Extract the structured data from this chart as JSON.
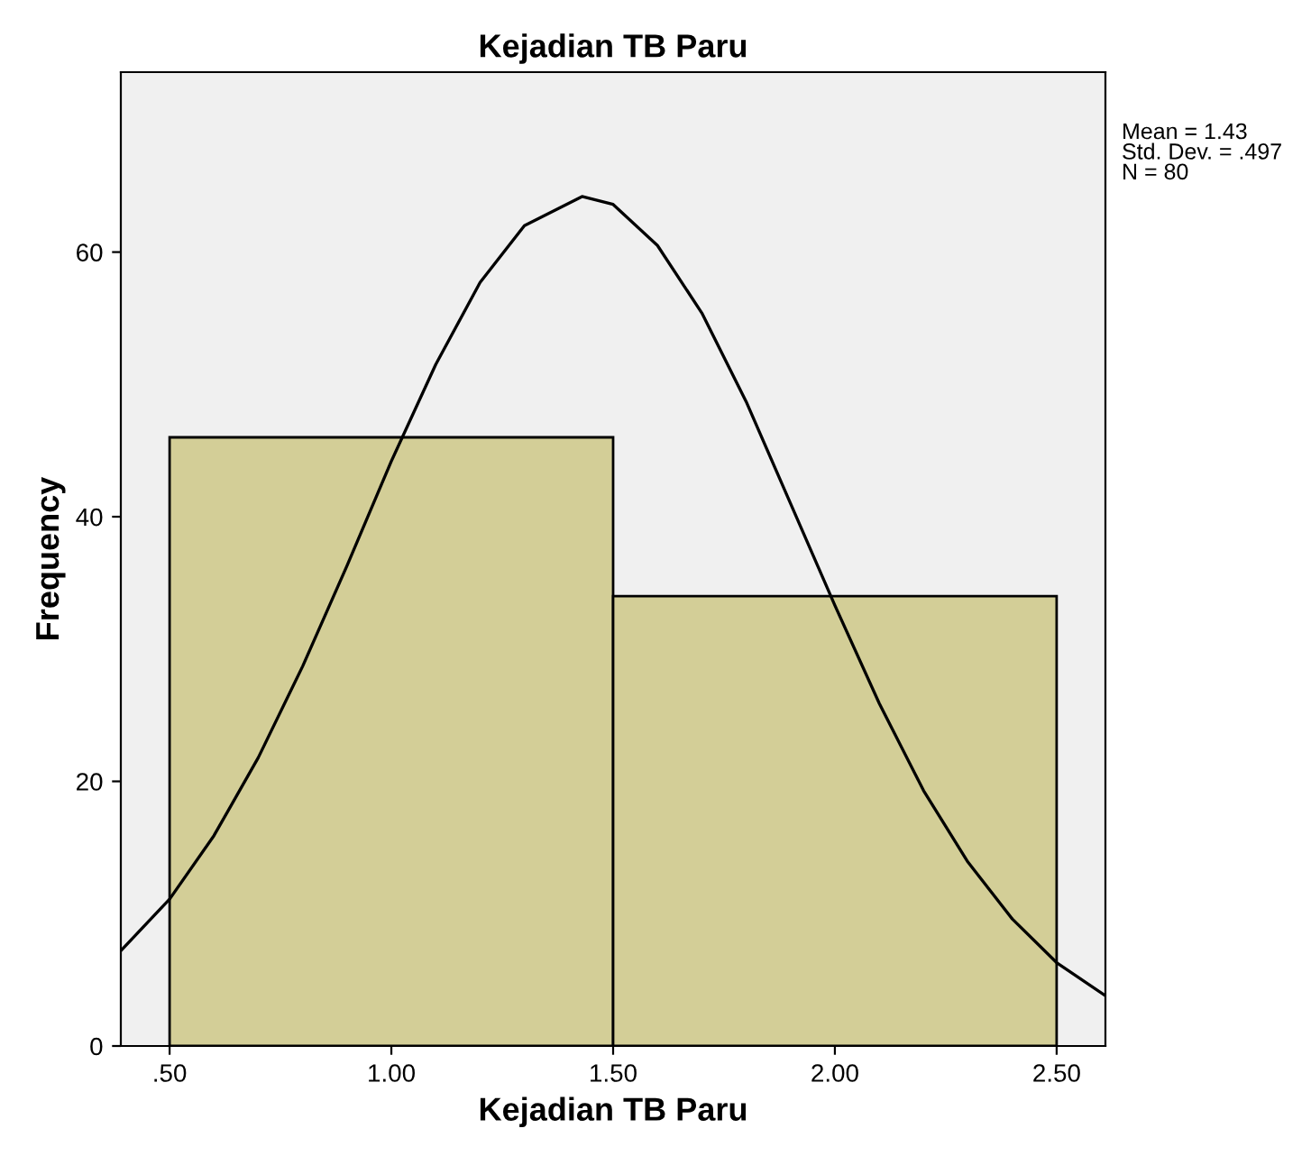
{
  "chart_data": {
    "type": "histogram",
    "title": "Kejadian TB Paru",
    "xlabel": "Kejadian TB Paru",
    "ylabel": "Frequency",
    "bins": [
      0.5,
      1.5,
      2.5
    ],
    "series": [
      {
        "color": "#d3ce97",
        "values": [
          46,
          34
        ]
      },
      {
        "type": "line",
        "color": "#000000",
        "x": [
          0.39,
          0.5,
          0.6,
          0.7,
          0.8,
          0.9,
          1.0,
          1.1,
          1.2,
          1.3,
          1.43,
          1.5,
          1.6,
          1.7,
          1.8,
          1.9,
          2.0,
          2.1,
          2.2,
          2.3,
          2.4,
          2.5,
          2.61
        ],
        "values": [
          7.2,
          11.1,
          15.9,
          21.8,
          28.7,
          36.3,
          44.2,
          51.5,
          57.7,
          62.0,
          64.2,
          63.6,
          60.5,
          55.4,
          48.7,
          41.0,
          33.3,
          25.9,
          19.3,
          13.9,
          9.6,
          6.3,
          3.8
        ]
      }
    ],
    "xlim": [
      0.39,
      2.61
    ],
    "ylim": [
      0,
      73.6
    ],
    "xticks": [
      {
        "value": 0.5,
        "label": ".50"
      },
      {
        "value": 1.0,
        "label": "1.00"
      },
      {
        "value": 1.5,
        "label": "1.50"
      },
      {
        "value": 2.0,
        "label": "2.00"
      },
      {
        "value": 2.5,
        "label": "2.50"
      }
    ],
    "yticks": [
      0,
      20,
      40,
      60
    ],
    "annotations": [
      "Mean = 1.43\nStd. Dev. = .497\nN = 80"
    ]
  }
}
